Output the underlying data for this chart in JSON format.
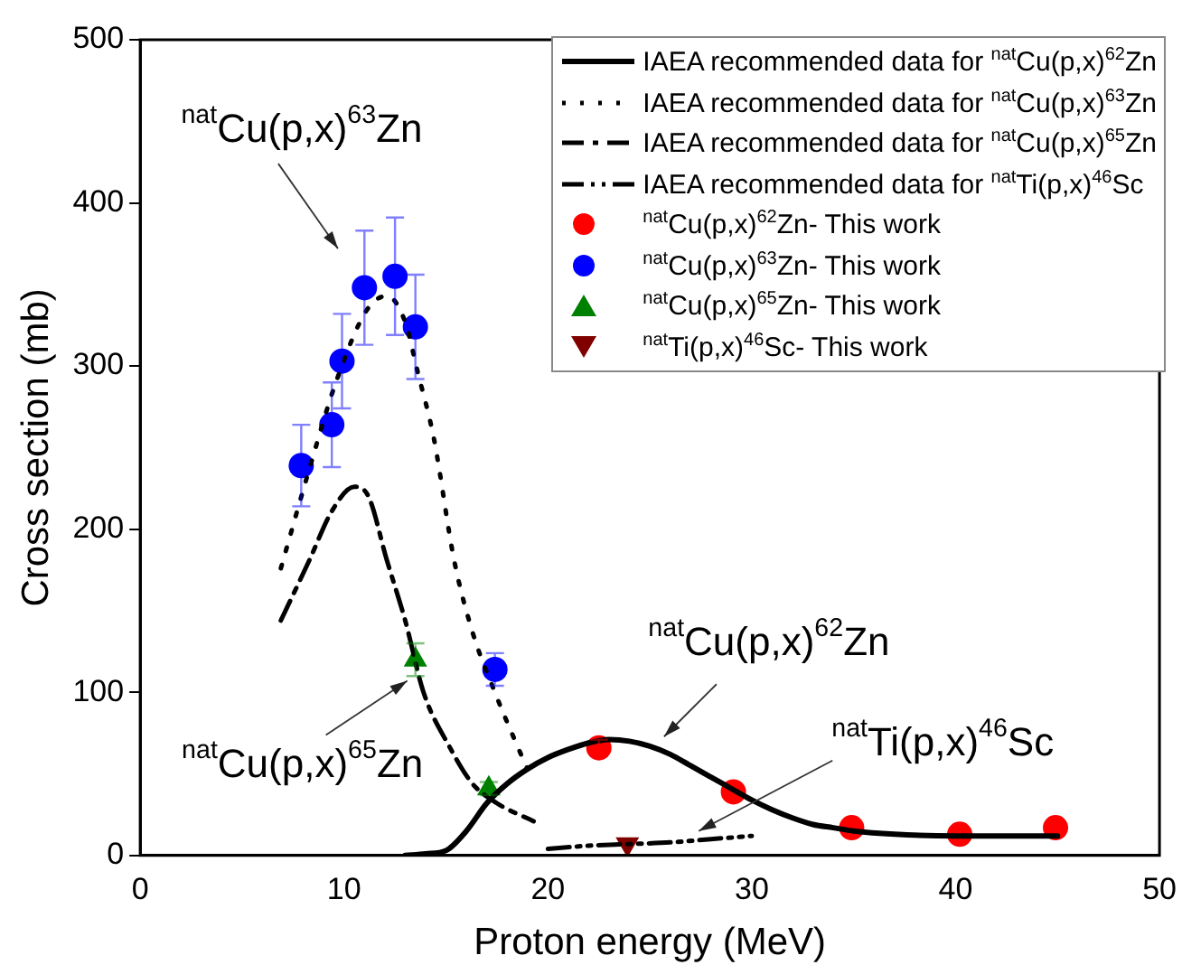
{
  "chart_data": {
    "type": "scatter",
    "xlabel": "Proton energy (MeV)",
    "ylabel": "Cross section (mb)",
    "xlim": [
      0,
      50
    ],
    "ylim": [
      0,
      500
    ],
    "xticks": [
      0,
      10,
      20,
      30,
      40,
      50
    ],
    "yticks": [
      0,
      100,
      200,
      300,
      400,
      500
    ],
    "grid": false,
    "legend": "top right",
    "series": [
      {
        "name": "IAEA recommended data for $^{nat}$Cu(p,x)$^{62}$Zn",
        "type": "line",
        "line_style": "solid",
        "color": "#000000",
        "x": [
          13,
          14,
          15,
          16,
          17,
          18,
          19,
          20,
          21,
          22,
          23,
          24,
          25,
          26,
          27,
          28,
          29,
          30,
          31,
          32,
          33,
          34,
          35,
          37,
          40,
          45
        ],
        "values": [
          0,
          1,
          3,
          15,
          32,
          44,
          53,
          60,
          65,
          69,
          71,
          70,
          67,
          62,
          55,
          48,
          41,
          34,
          28,
          23,
          19,
          17,
          15,
          13,
          12,
          12
        ]
      },
      {
        "name": "IAEA recommended data for $^{nat}$Cu(p,x)$^{63}$Zn",
        "type": "line",
        "line_style": "dotted",
        "color": "#000000",
        "x": [
          6.9,
          8.3,
          9.6,
          11.1,
          12.1,
          13.0,
          13.6,
          14.4,
          15.4,
          16.3,
          17.4,
          18.4,
          19.0
        ],
        "values": [
          176,
          237,
          290,
          334,
          343,
          327,
          297,
          256,
          181,
          137,
          100,
          70,
          53
        ]
      },
      {
        "name": "IAEA recommended data for $^{nat}$Cu(p,x)$^{65}$Zn",
        "type": "line",
        "line_style": "dashdot",
        "color": "#000000",
        "x": [
          6.9,
          8.3,
          9.4,
          10.5,
          11.2,
          12.1,
          13.0,
          13.9,
          15.2,
          16.3,
          17.5,
          19.3
        ],
        "values": [
          144,
          181,
          211,
          226,
          220,
          181,
          144,
          100,
          66,
          44,
          32,
          21
        ]
      },
      {
        "name": "IAEA recommended data for $^{nat}$Ti(p,x)$^{46}$Sc",
        "type": "line",
        "line_style": "dashdotdot",
        "color": "#000000",
        "x": [
          20,
          22,
          24,
          26,
          28,
          30
        ],
        "values": [
          4,
          6,
          7,
          8,
          10,
          12
        ]
      },
      {
        "name": "$^{nat}$Cu(p,x)$^{62}$Zn- This work",
        "type": "scatter",
        "marker": "circle",
        "color": "#ff0000",
        "x": [
          22.5,
          29.1,
          34.9,
          40.2,
          44.9
        ],
        "values": [
          66,
          39,
          17,
          13,
          17
        ],
        "errors": [
          5,
          null,
          null,
          null,
          null
        ]
      },
      {
        "name": "$^{nat}$Cu(p,x)$^{63}$Zn- This work",
        "type": "scatter",
        "marker": "circle",
        "color": "#0000ff",
        "x": [
          7.9,
          9.4,
          9.9,
          11.0,
          12.5,
          13.5,
          17.4
        ],
        "values": [
          239,
          264,
          303,
          348,
          355,
          324,
          114
        ],
        "errors": [
          25,
          26,
          29,
          35,
          36,
          32,
          10
        ]
      },
      {
        "name": "$^{nat}$Cu(p,x)$^{65}$Zn- This work",
        "type": "scatter",
        "marker": "triangle",
        "color": "#008000",
        "x": [
          13.5,
          17.1
        ],
        "values": [
          120,
          41
        ],
        "errors": [
          10,
          4
        ]
      },
      {
        "name": "$^{nat}$Ti(p,x)$^{46}$Sc- This work",
        "type": "scatter",
        "marker": "triangle_down",
        "color": "#800000",
        "x": [
          23.9
        ],
        "values": [
          7
        ]
      }
    ],
    "annotations": [
      "$^{nat}$Cu(p,x)$^{63}$Zn",
      {
        "text": "$^{nat}$Cu(p,x)$^{65}$Zn",
        "x": 13.1,
        "y": 107
      },
      {
        "text": "$^{nat}$Cu(p,x)$^{62}$Zn",
        "x": 25.7,
        "y": 64
      },
      {
        "text": "$^{nat}$Ti(p,x)$^{46}$Sc",
        "x": 27.4,
        "y": 15
      }
    ]
  }
}
